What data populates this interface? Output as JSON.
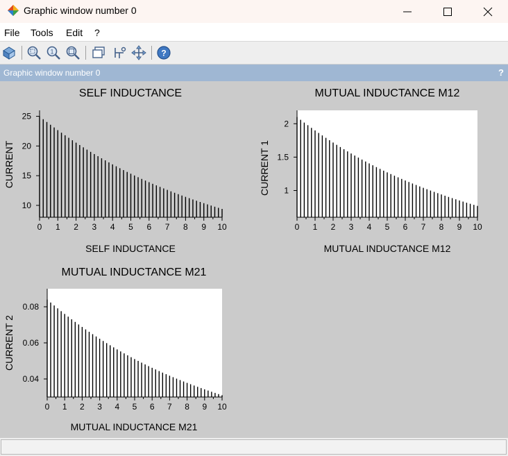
{
  "window": {
    "title": "Graphic window number 0"
  },
  "menu": {
    "items": [
      "File",
      "Tools",
      "Edit",
      "?"
    ]
  },
  "toolbar": {
    "icons": [
      "rotate-icon",
      "zoom-area-icon",
      "zoom-in-icon",
      "zoom-out-icon",
      "datatip-icon",
      "edit-axes-icon",
      "pan-icon",
      "help-icon"
    ]
  },
  "panel": {
    "title": "Graphic window number 0",
    "help_label": "?"
  },
  "status": {
    "text": ""
  },
  "colors": {
    "plot_background_1": "#cbcbcb",
    "plot_background_white": "#ffffff",
    "stem_color": "#000000",
    "header_bar": "#9fb7d3"
  },
  "chart_data": [
    {
      "type": "bar",
      "style": "stem",
      "title": "SELF INDUCTANCE",
      "xlabel": "SELF INDUCTANCE",
      "ylabel": "CURRENT",
      "xlim": [
        0,
        10
      ],
      "ylim": [
        8,
        26
      ],
      "xticks": [
        "0",
        "1",
        "2",
        "3",
        "4",
        "5",
        "6",
        "7",
        "8",
        "9",
        "10"
      ],
      "yticks": [
        "10",
        "15",
        "20",
        "25"
      ],
      "background": "#cbcbcb",
      "x": {
        "start": 0,
        "step": 0.2,
        "count": 51
      },
      "y": {
        "start": 25,
        "end": 9.4,
        "decay": "exponential"
      }
    },
    {
      "type": "bar",
      "style": "stem",
      "title": "MUTUAL INDUCTANCE M12",
      "xlabel": "MUTUAL INDUCTANCE M12",
      "ylabel": "CURRENT 1",
      "xlim": [
        0,
        10
      ],
      "ylim": [
        0.6,
        2.2
      ],
      "xticks": [
        "0",
        "1",
        "2",
        "3",
        "4",
        "5",
        "6",
        "7",
        "8",
        "9",
        "10"
      ],
      "yticks": [
        "1",
        "1.5",
        "2"
      ],
      "background": "#ffffff",
      "x": {
        "start": 0,
        "step": 0.2,
        "count": 51
      },
      "y": {
        "start": 2.1,
        "end": 0.77,
        "decay": "exponential"
      }
    },
    {
      "type": "bar",
      "style": "stem",
      "title": "MUTUAL INDUCTANCE M21",
      "xlabel": "MUTUAL INDUCTANCE M21",
      "ylabel": "CURRENT 2",
      "xlim": [
        0,
        10
      ],
      "ylim": [
        0.03,
        0.09
      ],
      "xticks": [
        "0",
        "1",
        "2",
        "3",
        "4",
        "5",
        "6",
        "7",
        "8",
        "9",
        "10"
      ],
      "yticks": [
        "0.04",
        "0.06",
        "0.08"
      ],
      "background": "#ffffff",
      "x": {
        "start": 0,
        "step": 0.2,
        "count": 51
      },
      "y": {
        "start": 0.084,
        "end": 0.031,
        "decay": "exponential"
      }
    }
  ]
}
